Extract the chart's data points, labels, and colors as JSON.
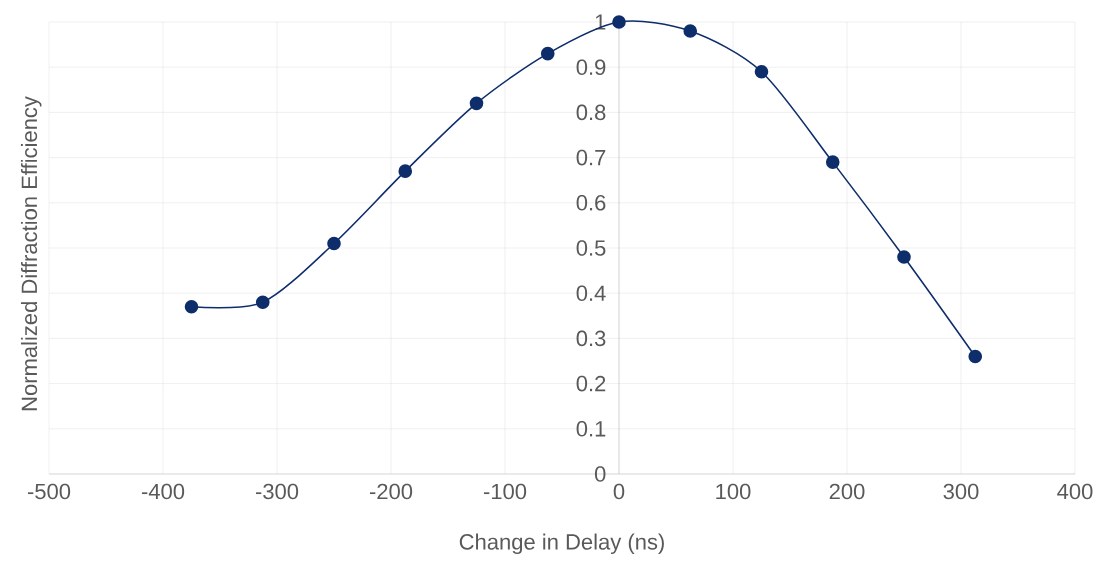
{
  "chart_data": {
    "type": "line",
    "xlabel": "Change in Delay (ns)",
    "ylabel": "Normalized Diffraction Efficiency",
    "x": [
      -375,
      -312.5,
      -250,
      -187.5,
      -125,
      -62.5,
      0,
      62.5,
      125,
      187.5,
      250,
      312.5
    ],
    "series": [
      {
        "color": "#0e2d6b",
        "values": [
          0.37,
          0.38,
          0.51,
          0.67,
          0.82,
          0.93,
          1.0,
          0.98,
          0.89,
          0.69,
          0.48,
          0.26
        ]
      }
    ],
    "xlim": [
      -500,
      400
    ],
    "xticks": [
      -500,
      -400,
      -300,
      -200,
      -100,
      0,
      100,
      200,
      300,
      400
    ],
    "ylim": [
      0,
      1
    ],
    "yticks": [
      0,
      0.1,
      0.2,
      0.3,
      0.4,
      0.5,
      0.6,
      0.7,
      0.8,
      0.9,
      1
    ],
    "grid": true,
    "marker": "circle",
    "line_style": "solid"
  }
}
